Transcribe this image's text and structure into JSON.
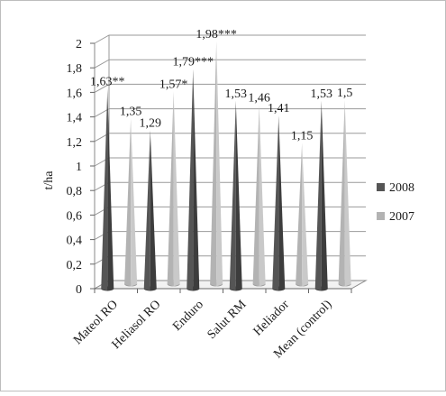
{
  "chart_data": {
    "type": "bar",
    "style": "3d-cone",
    "categories": [
      "Mateol RO",
      "Heliasol RO",
      "Enduro",
      "Salut RM",
      "Heliador",
      "Mean (control)"
    ],
    "series": [
      {
        "name": "2008",
        "color": "#555555",
        "values": [
          1.63,
          1.29,
          1.79,
          1.53,
          1.41,
          1.53
        ],
        "labels": [
          "1,63**",
          "1,29",
          "1,79***",
          "1,53",
          "1,41",
          "1,53"
        ]
      },
      {
        "name": "2007",
        "color": "#b3b3b3",
        "values": [
          1.35,
          1.57,
          1.98,
          1.46,
          1.15,
          1.5
        ],
        "labels": [
          "1,35",
          "1,57*",
          "1,98***",
          "1,46",
          "1,15",
          "1,5"
        ]
      }
    ],
    "ylabel": "t/ha",
    "xlabel": "",
    "ylim": [
      0,
      2
    ],
    "yticks": [
      "0",
      "0,2",
      "0,4",
      "0,6",
      "0,8",
      "1",
      "1,2",
      "1,4",
      "1,6",
      "1,8",
      "2"
    ],
    "grid": true,
    "legend_position": "right"
  }
}
